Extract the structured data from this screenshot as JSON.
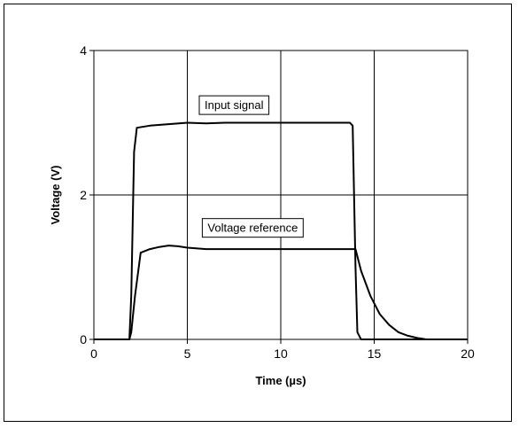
{
  "chart_data": {
    "type": "line",
    "xlabel": "Time (µs)",
    "ylabel": "Voltage (V)",
    "xlim": [
      0,
      20
    ],
    "ylim": [
      0,
      4
    ],
    "xticks": [
      0,
      5,
      10,
      15,
      20
    ],
    "yticks": [
      0,
      2,
      4
    ],
    "grid": true,
    "series": [
      {
        "label": "Input signal",
        "color": "#000000",
        "x": [
          0,
          1.9,
          2.0,
          2.15,
          2.3,
          3,
          4,
          5,
          6,
          7,
          8,
          9,
          10,
          11,
          12,
          13,
          13.7,
          13.85,
          14.0,
          14.1,
          14.3,
          20
        ],
        "y": [
          0,
          0,
          0.6,
          2.6,
          2.93,
          2.96,
          2.98,
          3.0,
          2.99,
          3.0,
          3.0,
          3.0,
          3.0,
          3.0,
          3.0,
          3.0,
          3.0,
          2.96,
          1.0,
          0.1,
          0,
          0
        ]
      },
      {
        "label": "Voltage reference",
        "color": "#000000",
        "x": [
          0,
          1.9,
          2.0,
          2.2,
          2.5,
          3,
          3.5,
          4,
          4.5,
          5,
          6,
          8,
          10,
          12,
          13.5,
          14.0,
          14.3,
          14.8,
          15.3,
          15.8,
          16.3,
          16.8,
          17.3,
          17.8,
          20
        ],
        "y": [
          0,
          0,
          0.1,
          0.6,
          1.2,
          1.25,
          1.28,
          1.3,
          1.29,
          1.27,
          1.25,
          1.25,
          1.25,
          1.25,
          1.25,
          1.25,
          0.95,
          0.6,
          0.35,
          0.2,
          0.1,
          0.05,
          0.02,
          0,
          0
        ]
      }
    ],
    "annotations": [
      {
        "text": "Input signal",
        "x": 7.5,
        "y": 3.25
      },
      {
        "text": "Voltage reference",
        "x": 8.5,
        "y": 1.55
      }
    ]
  }
}
